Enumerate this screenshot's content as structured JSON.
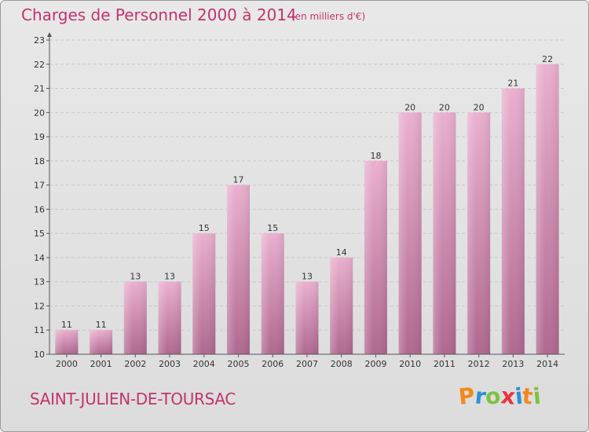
{
  "header": {
    "title": "Charges de Personnel 2000 à 2014",
    "unit": "(en milliers d'€)"
  },
  "footer": {
    "commune": "SAINT-JULIEN-DE-TOURSAC",
    "brand_letters": [
      "P",
      "r",
      "o",
      "x",
      "i",
      "t",
      "i"
    ],
    "brand_colors": [
      "#f08a1c",
      "#2e8fd6",
      "#7cc242",
      "#e7353d",
      "#2e8fd6",
      "#f08a1c",
      "#7cc242"
    ]
  },
  "chart_data": {
    "type": "bar",
    "title": "Charges de Personnel 2000 à 2014",
    "subtitle": "(en milliers d'€)",
    "xlabel": "",
    "ylabel": "",
    "categories": [
      "2000",
      "2001",
      "2002",
      "2003",
      "2004",
      "2005",
      "2006",
      "2007",
      "2008",
      "2009",
      "2010",
      "2011",
      "2012",
      "2013",
      "2014"
    ],
    "values": [
      11,
      11,
      13,
      13,
      15,
      17,
      15,
      13,
      14,
      18,
      20,
      20,
      20,
      21,
      22
    ],
    "ylim": [
      10,
      23
    ],
    "yticks": [
      10,
      11,
      12,
      13,
      14,
      15,
      16,
      17,
      18,
      19,
      20,
      21,
      22,
      23
    ],
    "grid": true,
    "bar_color": "#d988b4"
  }
}
